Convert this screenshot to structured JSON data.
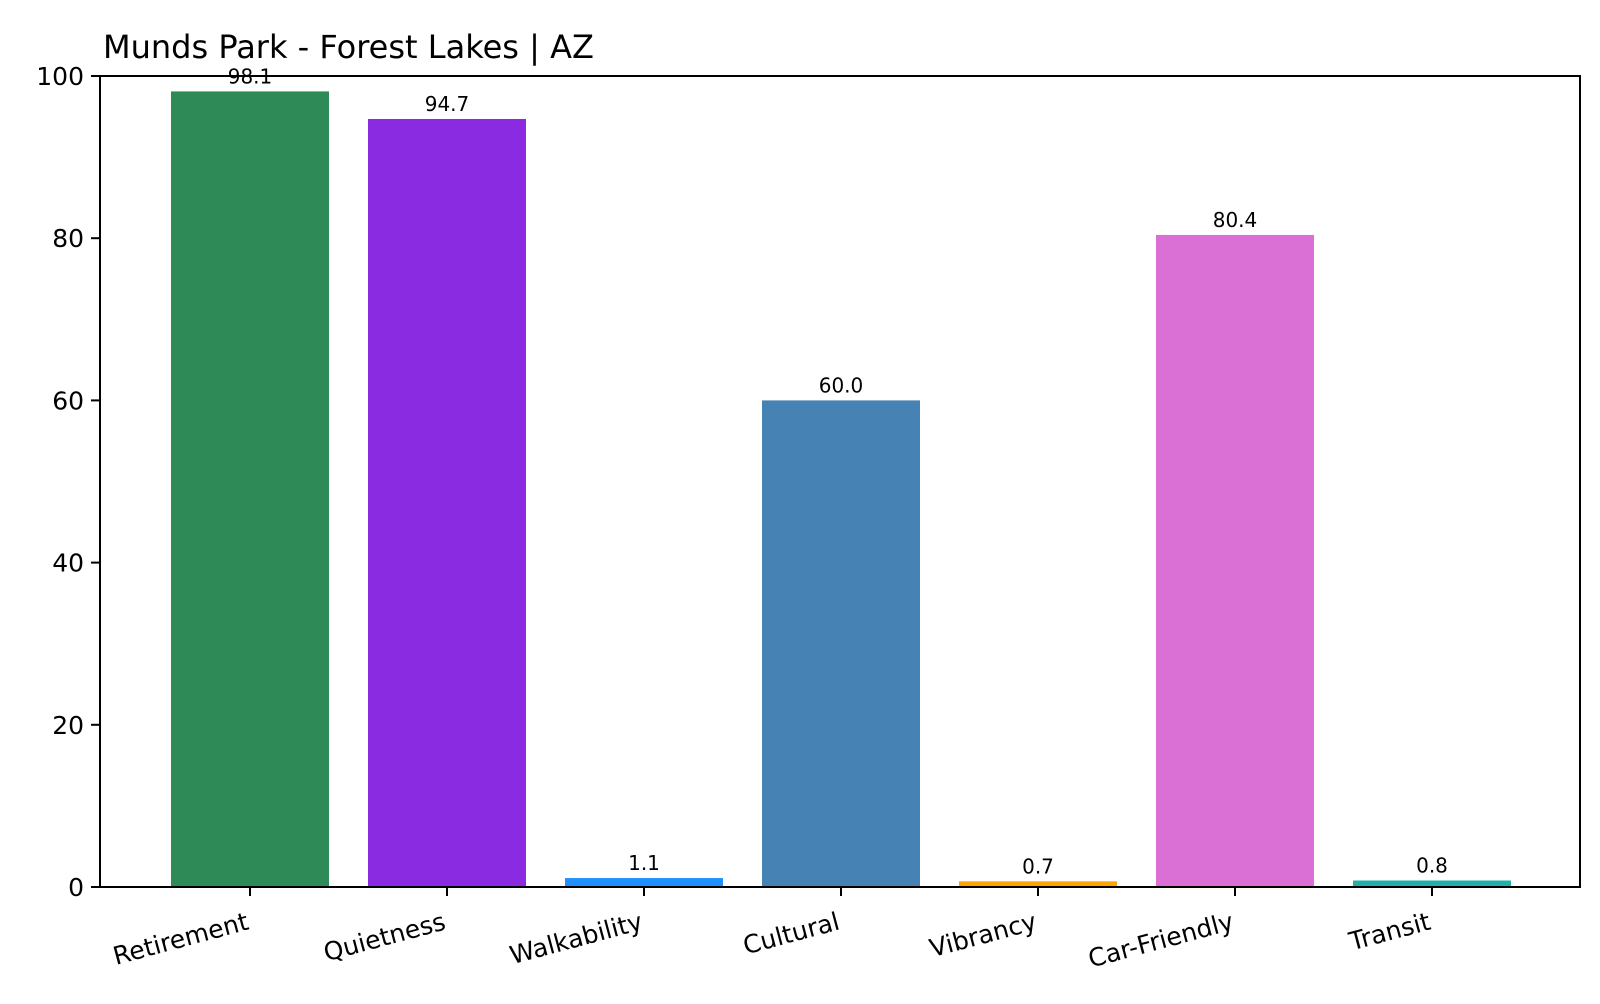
{
  "chart_data": {
    "type": "bar",
    "title": "Munds Park - Forest Lakes | AZ",
    "xlabel": "",
    "ylabel": "",
    "ylim": [
      0,
      100
    ],
    "yticks": [
      "0",
      "20",
      "40",
      "60",
      "80",
      "100"
    ],
    "categories": [
      "Retirement",
      "Quietness",
      "Walkability",
      "Cultural",
      "Vibrancy",
      "Car-Friendly",
      "Transit"
    ],
    "values": [
      98.1,
      94.7,
      1.1,
      60.0,
      0.7,
      80.4,
      0.8
    ],
    "value_labels": [
      "98.1",
      "94.7",
      "1.1",
      "60.0",
      "0.7",
      "80.4",
      "0.8"
    ],
    "colors": [
      "#2e8b57",
      "#8a2be2",
      "#1e90ff",
      "#4682b4",
      "#ffa500",
      "#da70d6",
      "#20b2aa"
    ],
    "grid": false,
    "legend": "none"
  }
}
